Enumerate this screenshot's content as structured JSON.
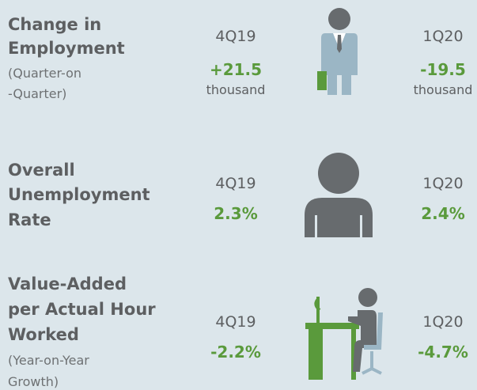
{
  "rows": [
    {
      "title_lines": [
        "Change in",
        "Employment"
      ],
      "subtitle_lines": [
        "(Quarter-on",
        "-Quarter)"
      ],
      "left": {
        "period": "4Q19",
        "value": "+21.5",
        "unit": "thousand"
      },
      "right": {
        "period": "1Q20",
        "value": "-19.5",
        "unit": "thousand"
      }
    },
    {
      "title_lines": [
        "Overall",
        "Unemployment",
        "Rate"
      ],
      "left": {
        "period": "4Q19",
        "value": "2.3%"
      },
      "right": {
        "period": "1Q20",
        "value": "2.4%"
      }
    },
    {
      "title_lines": [
        "Value-Added",
        "per Actual Hour",
        "Worked"
      ],
      "subtitle_lines": [
        "(Year-on-Year",
        "Growth)"
      ],
      "left": {
        "period": "4Q19",
        "value": "-2.2%"
      },
      "right": {
        "period": "1Q20",
        "value": "-4.7%"
      }
    }
  ]
}
